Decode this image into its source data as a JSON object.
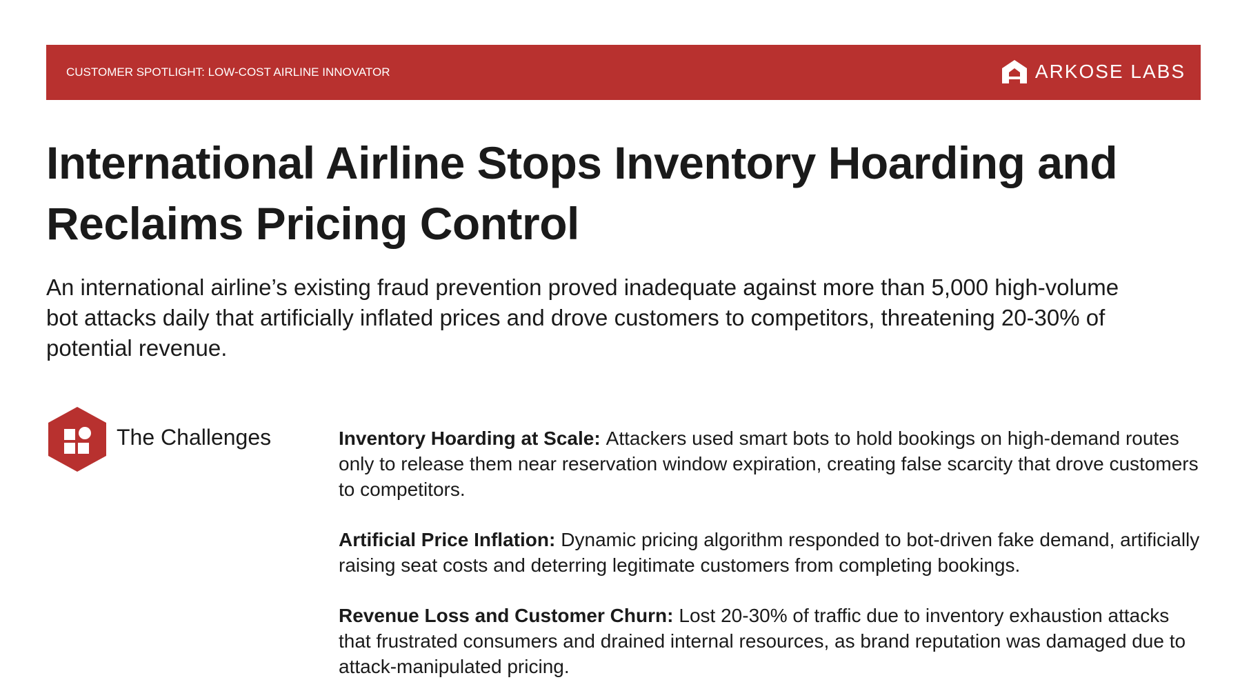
{
  "header": {
    "label": "CUSTOMER SPOTLIGHT: LOW-COST AIRLINE INNOVATOR",
    "logo": "ARKOSE LABS"
  },
  "title": "International Airline Stops Inventory Hoarding and Reclaims Pricing Control",
  "summary": "An international airline’s existing fraud prevention proved inadequate against more than 5,000 high-volume bot attacks daily that artificially inflated prices and drove customers to competitors, threatening 20-30% of potential revenue.",
  "challenges": {
    "heading": "The Challenges",
    "items": [
      {
        "title": "Inventory Hoarding at Scale:",
        "text": "Attackers used smart bots to hold bookings on high-demand routes only to release them near reservation window expiration, creating false scarcity that drove customers to competitors."
      },
      {
        "title": "Artificial Price Inflation:",
        "text": "Dynamic pricing algorithm responded to bot-driven fake demand, artificially raising seat costs and deterring legitimate customers from completing bookings."
      },
      {
        "title": "Revenue Loss and Customer Churn:",
        "text": "Lost 20-30% of traffic due to inventory exhaustion attacks that frustrated consumers and drained internal resources, as brand reputation was damaged due to attack-manipulated pricing."
      }
    ]
  }
}
